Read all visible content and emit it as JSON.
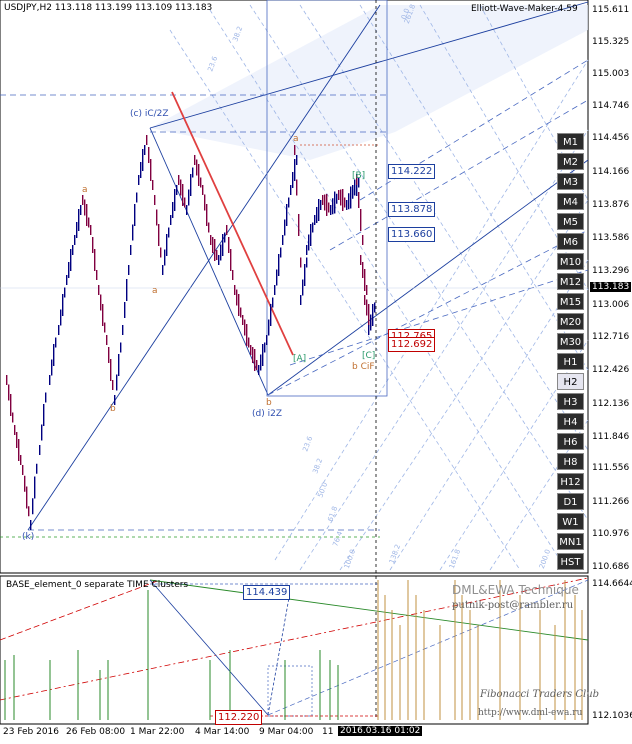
{
  "header": {
    "symbol_info": "USDJPY,H2  113.118 113.199 113.109 113.183",
    "indicator_name": "Elliott-Wave-Maker-4.59"
  },
  "price_axis": [
    "115.611",
    "115.325",
    "115.003",
    "114.746",
    "114.456",
    "114.166",
    "113.876",
    "113.586",
    "113.296",
    "113.006",
    "112.716",
    "112.426",
    "112.136",
    "111.846",
    "111.556",
    "111.266",
    "110.976",
    "110.686"
  ],
  "current_price": "113.183",
  "sub_axis": {
    "top": "114.6644",
    "bottom": "112.1036"
  },
  "level_boxes": {
    "blue": [
      "114.222",
      "113.878",
      "113.660"
    ],
    "red": [
      "112.765",
      "112.692"
    ]
  },
  "sub_boxes": {
    "blue": "114.439",
    "red": "112.220"
  },
  "wave_labels": {
    "c_ic": "(c) iC/2Z",
    "d_i2z": "(d) i2Z",
    "b_cif": "b CiF",
    "B": "[B]",
    "A": "[A]",
    "C": "[C]",
    "k": "(k)",
    "a1": "a",
    "a2": "a",
    "a3": "a",
    "b1": "b",
    "b2": "b"
  },
  "fib_labels": [
    "23.6",
    "38.2",
    "50.0",
    "61.8",
    "76.4",
    "100.0",
    "138.2",
    "161.8",
    "200.0",
    "261.8",
    "0.0",
    "23.6",
    "38.2"
  ],
  "timeframes": [
    "M1",
    "M2",
    "M3",
    "M4",
    "M5",
    "M6",
    "M10",
    "M12",
    "M15",
    "M20",
    "M30",
    "H1",
    "H2",
    "H3",
    "H4",
    "H6",
    "H8",
    "H12",
    "D1",
    "W1",
    "MN1",
    "HST"
  ],
  "active_timeframe": "H2",
  "sub_window": {
    "title": "BASE_element_0 separate TIME Clusters",
    "watermark1": "DML&EWA Technique",
    "watermark2": "putnik-post@rambler.ru",
    "watermark3": "Fibonacci Traders Club",
    "watermark4": "http://www.dml-ewa.ru"
  },
  "time_axis": [
    "23 Feb 2016",
    "26 Feb 08:00",
    "1 Mar 22:00",
    "4 Mar 14:00",
    "9 Mar 04:00",
    "11",
    "2016.03.16 01:02"
  ],
  "colors": {
    "bull": "#000080",
    "bear": "#800040",
    "accent_red": "#d00000",
    "fib_blue": "#8fa8e0"
  }
}
